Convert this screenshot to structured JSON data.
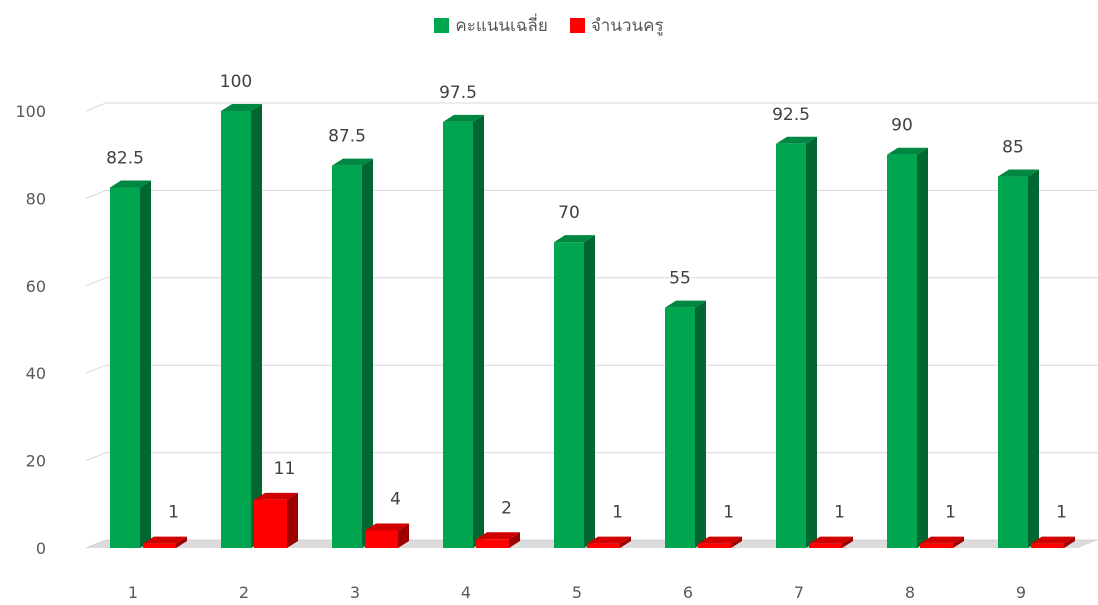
{
  "chart_data": {
    "type": "bar",
    "categories": [
      "1",
      "2",
      "3",
      "4",
      "5",
      "6",
      "7",
      "8",
      "9"
    ],
    "series": [
      {
        "name": "คะแนนเฉลี่ย",
        "color": "#00A550",
        "values": [
          82.5,
          100,
          87.5,
          97.5,
          70,
          55,
          92.5,
          90,
          85
        ],
        "labels": [
          "82.5",
          "100",
          "87.5",
          "97.5",
          "70",
          "55",
          "92.5",
          "90",
          "85"
        ]
      },
      {
        "name": "จำนวนครู",
        "color": "#FF0000",
        "values": [
          1,
          11,
          4,
          2,
          1,
          1,
          1,
          1,
          1
        ],
        "labels": [
          "1",
          "11",
          "4",
          "2",
          "1",
          "1",
          "1",
          "1",
          "1"
        ]
      }
    ],
    "yticks": [
      "0",
      "20",
      "40",
      "60",
      "80",
      "100"
    ],
    "ylim": [
      0,
      100
    ],
    "grid": true,
    "legend": "top-center",
    "style": "3d-column"
  }
}
